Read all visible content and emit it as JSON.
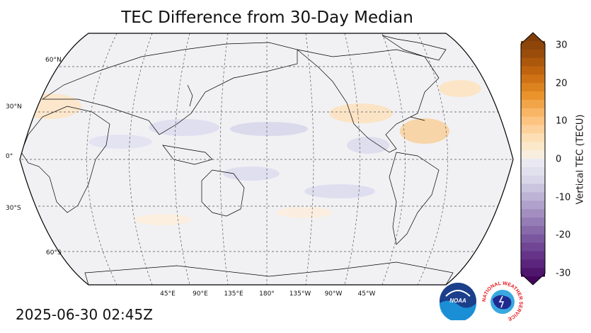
{
  "title": "TEC Difference from 30-Day Median",
  "timestamp": "2025-06-30 02:45Z",
  "map": {
    "projection": "robinson",
    "central_longitude": "180°",
    "lat_labels": [
      "60°N",
      "30°N",
      "0°",
      "30°S",
      "60°S"
    ],
    "lon_labels": [
      "45°E",
      "90°E",
      "135°E",
      "180°",
      "135°W",
      "90°W",
      "45°W"
    ],
    "gridlines": "dashed",
    "coastlines": true,
    "borders": true
  },
  "colorbar": {
    "label": "Vertical TEC (TECU)",
    "ticks": [
      "30",
      "20",
      "10",
      "0",
      "-10",
      "-20",
      "-30"
    ],
    "range": [
      -30,
      30
    ],
    "extend": "both",
    "colormap": "PuOr diverging (purple negative, orange positive)"
  },
  "logos": {
    "noaa": "NOAA",
    "nws": "NATIONAL WEATHER SERVICE"
  },
  "colors": {
    "land_fill": "#f2f2f5",
    "positive_light": "#fde9cf",
    "negative_light": "#dcdcef",
    "coastline": "#000000"
  }
}
